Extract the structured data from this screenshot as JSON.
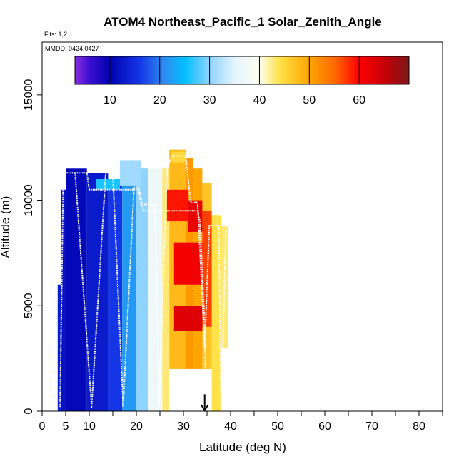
{
  "chart_data": {
    "type": "heatmap",
    "title": "ATOM4 Northeast_Pacific_1 Solar_Zenith_Angle",
    "flights_label": "Flts: 1,2",
    "dates_label": "MMDD: 0424,0427",
    "xlabel": "Latitude (deg N)",
    "ylabel": "Altitude (m)",
    "xlim": [
      0,
      85
    ],
    "ylim": [
      0,
      17500
    ],
    "x_ticks": [
      0,
      5,
      10,
      20,
      30,
      40,
      50,
      60,
      70,
      80
    ],
    "x_minor_ticks": [
      15,
      25,
      35,
      45,
      55,
      65,
      75,
      85
    ],
    "y_ticks": [
      0,
      5000,
      10000,
      15000
    ],
    "colorbar": {
      "range": [
        3,
        70
      ],
      "tick_values": [
        10,
        20,
        30,
        40,
        50,
        60
      ],
      "stops": [
        {
          "value": 3,
          "color": "#8a2be2"
        },
        {
          "value": 6,
          "color": "#3a0fd0"
        },
        {
          "value": 10,
          "color": "#0000b0"
        },
        {
          "value": 16,
          "color": "#1436e6"
        },
        {
          "value": 21,
          "color": "#2f8cf0"
        },
        {
          "value": 25,
          "color": "#00bfff"
        },
        {
          "value": 30,
          "color": "#8fd3ff"
        },
        {
          "value": 35,
          "color": "#e4f4ff"
        },
        {
          "value": 40,
          "color": "#fffff0"
        },
        {
          "value": 44,
          "color": "#ffe24a"
        },
        {
          "value": 50,
          "color": "#ffa500"
        },
        {
          "value": 55,
          "color": "#ff6a00"
        },
        {
          "value": 60,
          "color": "#ff0000"
        },
        {
          "value": 65,
          "color": "#c80008"
        },
        {
          "value": 70,
          "color": "#7a1818"
        }
      ]
    },
    "cells": [
      {
        "x0": 3.3,
        "x1": 4.0,
        "y0": 0,
        "y1": 6000,
        "v": 13
      },
      {
        "x0": 4.0,
        "x1": 5.0,
        "y0": 0,
        "y1": 10500,
        "v": 12
      },
      {
        "x0": 5.0,
        "x1": 9.5,
        "y0": 0,
        "y1": 11500,
        "v": 11
      },
      {
        "x0": 9.5,
        "x1": 14.0,
        "y0": 0,
        "y1": 11300,
        "v": 13
      },
      {
        "x0": 14.0,
        "x1": 17.0,
        "y0": 0,
        "y1": 11000,
        "v": 16
      },
      {
        "x0": 17.0,
        "x1": 20.0,
        "y0": 0,
        "y1": 11000,
        "v": 22
      },
      {
        "x0": 20.0,
        "x1": 22.5,
        "y0": 0,
        "y1": 11500,
        "v": 30
      },
      {
        "x0": 22.5,
        "x1": 25.5,
        "y0": 0,
        "y1": 11500,
        "v": 37
      },
      {
        "x0": 25.5,
        "x1": 27.0,
        "y0": 0,
        "y1": 11500,
        "v": 43
      },
      {
        "x0": 27.0,
        "x1": 30.5,
        "y0": 2000,
        "y1": 12400,
        "v": 48
      },
      {
        "x0": 30.5,
        "x1": 32.0,
        "y0": 2000,
        "y1": 12000,
        "v": 51
      },
      {
        "x0": 32.0,
        "x1": 34.0,
        "y0": 2000,
        "y1": 11500,
        "v": 50
      },
      {
        "x0": 34.0,
        "x1": 36.0,
        "y0": 2000,
        "y1": 10800,
        "v": 47
      },
      {
        "x0": 36.0,
        "x1": 38.0,
        "y0": 0,
        "y1": 9300,
        "v": 44
      },
      {
        "x0": 38.0,
        "x1": 39.5,
        "y0": 3000,
        "y1": 8800,
        "v": 43
      },
      {
        "x0": 11.5,
        "x1": 16.5,
        "y0": 10500,
        "y1": 11000,
        "v": 26
      },
      {
        "x0": 16.5,
        "x1": 21.0,
        "y0": 10700,
        "y1": 11900,
        "v": 31
      },
      {
        "x0": 26.5,
        "x1": 31.0,
        "y0": 9000,
        "y1": 10500,
        "v": 59
      },
      {
        "x0": 31.0,
        "x1": 34.0,
        "y0": 8500,
        "y1": 10000,
        "v": 62
      },
      {
        "x0": 28.0,
        "x1": 34.0,
        "y0": 6000,
        "y1": 8000,
        "v": 61
      },
      {
        "x0": 28.0,
        "x1": 34.0,
        "y0": 3800,
        "y1": 5000,
        "v": 63
      },
      {
        "x0": 34.0,
        "x1": 36.0,
        "y0": 4000,
        "y1": 9500,
        "v": 57
      },
      {
        "x0": 27.5,
        "x1": 30.5,
        "y0": 11800,
        "y1": 12300,
        "v": 45
      }
    ],
    "flight_tracks": [
      {
        "name": "Flt 1",
        "points": [
          [
            3.8,
            200
          ],
          [
            4.5,
            11300
          ],
          [
            7.0,
            11300
          ],
          [
            10.5,
            200
          ],
          [
            13.5,
            11300
          ],
          [
            15.0,
            11300
          ],
          [
            17.2,
            200
          ],
          [
            19.5,
            10600
          ],
          [
            20.5,
            10600
          ],
          [
            21.5,
            9500
          ],
          [
            27.0,
            9500
          ],
          [
            29.0,
            9500
          ],
          [
            33.0,
            9500
          ],
          [
            33.5,
            9000
          ],
          [
            34.5,
            4000
          ],
          [
            34.8,
            200
          ]
        ]
      },
      {
        "name": "Flt 2",
        "points": [
          [
            7.0,
            11300
          ],
          [
            9.5,
            11300
          ],
          [
            10.0,
            10500
          ],
          [
            20.5,
            10500
          ],
          [
            21.0,
            9800
          ],
          [
            24.0,
            9800
          ],
          [
            24.8,
            200
          ],
          [
            26.5,
            11500
          ],
          [
            27.5,
            12100
          ],
          [
            30.5,
            12100
          ],
          [
            31.5,
            9900
          ],
          [
            33.0,
            9900
          ],
          [
            34.5,
            3000
          ],
          [
            35.5,
            8800
          ],
          [
            37.5,
            8800
          ],
          [
            38.0,
            200
          ],
          [
            39.0,
            8600
          ]
        ]
      }
    ],
    "marker": {
      "label": "start arrow",
      "x": 34.5,
      "y_top": 800,
      "y_bottom": 0
    }
  }
}
